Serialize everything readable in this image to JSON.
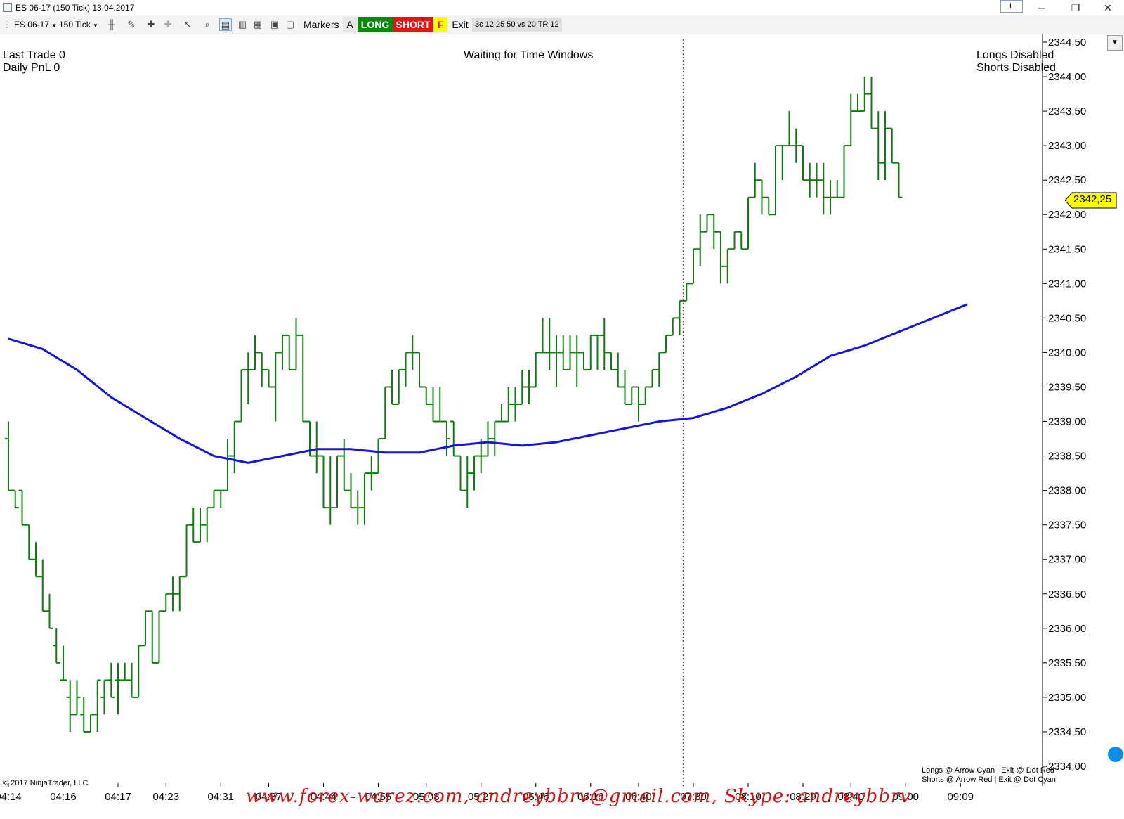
{
  "window": {
    "title": "ES 06-17 (150 Tick)  13.04.2017",
    "link_badge": "L",
    "minimize_glyph": "─",
    "restore_glyph": "❐",
    "close_glyph": "✕"
  },
  "toolbar": {
    "instrument": "ES 06-17",
    "interval": "150 Tick",
    "markers_label": "Markers",
    "a_label": "A",
    "long_label": "LONG",
    "short_label": "SHORT",
    "f_label": "F",
    "exit_label": "Exit",
    "strategy_label": "3c 12 25 50 vs 20 TR 12",
    "icons": [
      "bar-type-icon",
      "pencil-icon",
      "pin-icon",
      "gray-pin-icon",
      "pointer-icon",
      "zoom-icon",
      "data-box-icon",
      "chart-style-icon",
      "indicator-icon",
      "strategy-icon",
      "properties-icon"
    ]
  },
  "overlay": {
    "last_trade": "Last Trade 0",
    "daily_pnl": "Daily PnL  0",
    "status_center": "Waiting for Time Windows",
    "longs_status": "Longs Disabled",
    "shorts_status": "Shorts Disabled",
    "legend_longs": "Longs @ Arrow  Cyan | Exit @ Dot  Red",
    "legend_shorts": "Shorts @ Arrow  Red | Exit @ Dot  Cyan",
    "copyright": "© 2017 NinjaTrader, LLC",
    "watermark": "www.forex-warez.com, andreybbrv@gmail.com, Skype: andreybbrv"
  },
  "current_price": "2342,25",
  "colors": {
    "bars": "#0f7d0f",
    "ma": "#1414e6",
    "price_tag": "#ffff00",
    "long_btn": "#0a8a0a",
    "short_btn": "#e21414",
    "f_btn": "#ffff00",
    "watermark": "#d81010"
  },
  "chart_data": {
    "type": "ohlc",
    "ylim": [
      2334.0,
      2344.5
    ],
    "yticks": [
      {
        "value": 2344.5,
        "label": "2344,50"
      },
      {
        "value": 2344.0,
        "label": "2344,00"
      },
      {
        "value": 2343.5,
        "label": "2343,50"
      },
      {
        "value": 2343.0,
        "label": "2343,00"
      },
      {
        "value": 2342.5,
        "label": "2342,50"
      },
      {
        "value": 2342.0,
        "label": "2342,00"
      },
      {
        "value": 2341.5,
        "label": "2341,50"
      },
      {
        "value": 2341.0,
        "label": "2341,00"
      },
      {
        "value": 2340.5,
        "label": "2340,50"
      },
      {
        "value": 2340.0,
        "label": "2340,00"
      },
      {
        "value": 2339.5,
        "label": "2339,50"
      },
      {
        "value": 2339.0,
        "label": "2339,00"
      },
      {
        "value": 2338.5,
        "label": "2338,50"
      },
      {
        "value": 2338.0,
        "label": "2338,00"
      },
      {
        "value": 2337.5,
        "label": "2337,50"
      },
      {
        "value": 2337.0,
        "label": "2337,00"
      },
      {
        "value": 2336.5,
        "label": "2336,50"
      },
      {
        "value": 2336.0,
        "label": "2336,00"
      },
      {
        "value": 2335.5,
        "label": "2335,50"
      },
      {
        "value": 2335.0,
        "label": "2335,00"
      },
      {
        "value": 2334.5,
        "label": "2334,50"
      },
      {
        "value": 2334.0,
        "label": "2334,00"
      }
    ],
    "xticks": [
      {
        "bar": 0,
        "label": "04:14"
      },
      {
        "bar": 8,
        "label": "04:16"
      },
      {
        "bar": 16,
        "label": "04:17"
      },
      {
        "bar": 23,
        "label": "04:23"
      },
      {
        "bar": 31,
        "label": "04:31"
      },
      {
        "bar": 38,
        "label": "04:37"
      },
      {
        "bar": 46,
        "label": "04:44"
      },
      {
        "bar": 54,
        "label": "04:55"
      },
      {
        "bar": 61,
        "label": "05:08"
      },
      {
        "bar": 69,
        "label": "05:27"
      },
      {
        "bar": 77,
        "label": "05:46"
      },
      {
        "bar": 85,
        "label": "06:16"
      },
      {
        "bar": 92,
        "label": "06:40"
      },
      {
        "bar": 100,
        "label": "07:30"
      },
      {
        "bar": 108,
        "label": "08:10"
      },
      {
        "bar": 116,
        "label": "08:29"
      },
      {
        "bar": 123,
        "label": "08:40"
      },
      {
        "bar": 131,
        "label": "09:00"
      },
      {
        "bar": 139,
        "label": "09:09"
      }
    ],
    "session_break_bar": 98,
    "bars": [
      {
        "o": 2338.75,
        "h": 2339.0,
        "l": 2338.0,
        "c": 2338.0
      },
      {
        "o": 2338.0,
        "h": 2338.0,
        "l": 2337.75,
        "c": 2337.75
      },
      {
        "o": 2338.0,
        "h": 2338.0,
        "l": 2337.5,
        "c": 2337.5
      },
      {
        "o": 2337.5,
        "h": 2337.5,
        "l": 2337.0,
        "c": 2337.0
      },
      {
        "o": 2337.0,
        "h": 2337.25,
        "l": 2336.75,
        "c": 2336.75
      },
      {
        "o": 2336.75,
        "h": 2337.0,
        "l": 2336.25,
        "c": 2336.25
      },
      {
        "o": 2336.25,
        "h": 2336.5,
        "l": 2336.0,
        "c": 2336.0
      },
      {
        "o": 2335.75,
        "h": 2336.0,
        "l": 2335.5,
        "c": 2335.5
      },
      {
        "o": 2335.25,
        "h": 2335.75,
        "l": 2335.25,
        "c": 2335.25
      },
      {
        "o": 2335.0,
        "h": 2335.25,
        "l": 2334.5,
        "c": 2334.75
      },
      {
        "o": 2334.75,
        "h": 2335.25,
        "l": 2334.75,
        "c": 2335.0
      },
      {
        "o": 2334.75,
        "h": 2335.0,
        "l": 2334.5,
        "c": 2334.5
      },
      {
        "o": 2334.5,
        "h": 2334.75,
        "l": 2334.5,
        "c": 2334.75
      },
      {
        "o": 2334.75,
        "h": 2335.25,
        "l": 2334.5,
        "c": 2335.25
      },
      {
        "o": 2335.0,
        "h": 2335.25,
        "l": 2334.75,
        "c": 2335.25
      },
      {
        "o": 2335.25,
        "h": 2335.5,
        "l": 2335.0,
        "c": 2335.0
      },
      {
        "o": 2335.25,
        "h": 2335.5,
        "l": 2334.75,
        "c": 2335.25
      },
      {
        "o": 2335.25,
        "h": 2335.5,
        "l": 2335.25,
        "c": 2335.25
      },
      {
        "o": 2335.25,
        "h": 2335.5,
        "l": 2335.0,
        "c": 2335.0
      },
      {
        "o": 2335.0,
        "h": 2335.75,
        "l": 2335.0,
        "c": 2335.75
      },
      {
        "o": 2335.75,
        "h": 2336.25,
        "l": 2335.75,
        "c": 2336.25
      },
      {
        "o": 2336.25,
        "h": 2336.25,
        "l": 2335.5,
        "c": 2335.5
      },
      {
        "o": 2335.5,
        "h": 2336.25,
        "l": 2335.5,
        "c": 2336.25
      },
      {
        "o": 2336.25,
        "h": 2336.5,
        "l": 2336.25,
        "c": 2336.5
      },
      {
        "o": 2336.5,
        "h": 2336.75,
        "l": 2336.25,
        "c": 2336.5
      },
      {
        "o": 2336.5,
        "h": 2336.75,
        "l": 2336.25,
        "c": 2336.75
      },
      {
        "o": 2336.75,
        "h": 2337.5,
        "l": 2336.75,
        "c": 2337.5
      },
      {
        "o": 2337.5,
        "h": 2337.75,
        "l": 2337.25,
        "c": 2337.25
      },
      {
        "o": 2337.25,
        "h": 2337.75,
        "l": 2337.25,
        "c": 2337.5
      },
      {
        "o": 2337.5,
        "h": 2337.75,
        "l": 2337.25,
        "c": 2337.75
      },
      {
        "o": 2337.75,
        "h": 2338.0,
        "l": 2337.75,
        "c": 2338.0
      },
      {
        "o": 2338.0,
        "h": 2338.0,
        "l": 2337.75,
        "c": 2338.0
      },
      {
        "o": 2338.0,
        "h": 2338.75,
        "l": 2338.0,
        "c": 2338.5
      },
      {
        "o": 2338.5,
        "h": 2339.0,
        "l": 2338.25,
        "c": 2339.0
      },
      {
        "o": 2339.0,
        "h": 2339.75,
        "l": 2339.0,
        "c": 2339.75
      },
      {
        "o": 2339.75,
        "h": 2340.0,
        "l": 2339.25,
        "c": 2339.75
      },
      {
        "o": 2339.75,
        "h": 2340.25,
        "l": 2339.75,
        "c": 2340.0
      },
      {
        "o": 2340.0,
        "h": 2340.0,
        "l": 2339.5,
        "c": 2339.75
      },
      {
        "o": 2339.75,
        "h": 2339.75,
        "l": 2339.5,
        "c": 2339.5
      },
      {
        "o": 2339.5,
        "h": 2340.0,
        "l": 2339.0,
        "c": 2340.0
      },
      {
        "o": 2340.0,
        "h": 2340.25,
        "l": 2339.75,
        "c": 2340.25
      },
      {
        "o": 2340.25,
        "h": 2340.25,
        "l": 2339.75,
        "c": 2339.75
      },
      {
        "o": 2339.75,
        "h": 2340.5,
        "l": 2339.75,
        "c": 2340.25
      },
      {
        "o": 2340.25,
        "h": 2340.25,
        "l": 2339.0,
        "c": 2339.0
      },
      {
        "o": 2339.0,
        "h": 2339.0,
        "l": 2338.5,
        "c": 2338.5
      },
      {
        "o": 2338.5,
        "h": 2339.0,
        "l": 2338.25,
        "c": 2338.5
      },
      {
        "o": 2338.5,
        "h": 2338.5,
        "l": 2337.75,
        "c": 2337.75
      },
      {
        "o": 2337.75,
        "h": 2338.5,
        "l": 2337.5,
        "c": 2337.75
      },
      {
        "o": 2337.75,
        "h": 2338.5,
        "l": 2337.75,
        "c": 2338.5
      },
      {
        "o": 2338.5,
        "h": 2338.75,
        "l": 2338.0,
        "c": 2338.0
      },
      {
        "o": 2338.0,
        "h": 2338.25,
        "l": 2337.75,
        "c": 2337.75
      },
      {
        "o": 2337.75,
        "h": 2338.0,
        "l": 2337.5,
        "c": 2337.75
      },
      {
        "o": 2337.75,
        "h": 2338.25,
        "l": 2337.5,
        "c": 2338.25
      },
      {
        "o": 2338.25,
        "h": 2338.5,
        "l": 2338.0,
        "c": 2338.25
      },
      {
        "o": 2338.25,
        "h": 2338.75,
        "l": 2338.25,
        "c": 2338.75
      },
      {
        "o": 2338.75,
        "h": 2339.5,
        "l": 2338.75,
        "c": 2339.5
      },
      {
        "o": 2339.5,
        "h": 2339.75,
        "l": 2339.25,
        "c": 2339.25
      },
      {
        "o": 2339.25,
        "h": 2339.75,
        "l": 2339.25,
        "c": 2339.75
      },
      {
        "o": 2339.75,
        "h": 2340.0,
        "l": 2339.5,
        "c": 2340.0
      },
      {
        "o": 2340.0,
        "h": 2340.25,
        "l": 2339.75,
        "c": 2340.0
      },
      {
        "o": 2340.0,
        "h": 2340.0,
        "l": 2339.5,
        "c": 2339.5
      },
      {
        "o": 2339.5,
        "h": 2339.5,
        "l": 2339.25,
        "c": 2339.25
      },
      {
        "o": 2339.25,
        "h": 2339.5,
        "l": 2339.0,
        "c": 2339.0
      },
      {
        "o": 2339.0,
        "h": 2339.5,
        "l": 2339.0,
        "c": 2339.0
      },
      {
        "o": 2339.0,
        "h": 2339.0,
        "l": 2338.5,
        "c": 2338.75
      },
      {
        "o": 2339.0,
        "h": 2339.0,
        "l": 2338.5,
        "c": 2338.5
      },
      {
        "o": 2338.5,
        "h": 2338.5,
        "l": 2338.0,
        "c": 2338.0
      },
      {
        "o": 2338.0,
        "h": 2338.5,
        "l": 2337.75,
        "c": 2338.25
      },
      {
        "o": 2338.25,
        "h": 2338.5,
        "l": 2338.0,
        "c": 2338.5
      },
      {
        "o": 2338.5,
        "h": 2338.75,
        "l": 2338.25,
        "c": 2338.5
      },
      {
        "o": 2338.5,
        "h": 2339.0,
        "l": 2338.5,
        "c": 2338.75
      },
      {
        "o": 2338.75,
        "h": 2339.0,
        "l": 2338.5,
        "c": 2339.0
      },
      {
        "o": 2339.0,
        "h": 2339.25,
        "l": 2339.0,
        "c": 2339.0
      },
      {
        "o": 2339.0,
        "h": 2339.5,
        "l": 2339.0,
        "c": 2339.25
      },
      {
        "o": 2339.25,
        "h": 2339.5,
        "l": 2339.0,
        "c": 2339.25
      },
      {
        "o": 2339.25,
        "h": 2339.75,
        "l": 2339.25,
        "c": 2339.5
      },
      {
        "o": 2339.5,
        "h": 2339.75,
        "l": 2339.25,
        "c": 2339.5
      },
      {
        "o": 2339.5,
        "h": 2340.0,
        "l": 2339.5,
        "c": 2340.0
      },
      {
        "o": 2340.0,
        "h": 2340.5,
        "l": 2340.0,
        "c": 2340.0
      },
      {
        "o": 2340.0,
        "h": 2340.5,
        "l": 2339.75,
        "c": 2340.0
      },
      {
        "o": 2340.0,
        "h": 2340.25,
        "l": 2339.5,
        "c": 2340.0
      },
      {
        "o": 2340.0,
        "h": 2340.25,
        "l": 2339.75,
        "c": 2339.75
      },
      {
        "o": 2339.75,
        "h": 2340.25,
        "l": 2339.75,
        "c": 2340.0
      },
      {
        "o": 2340.0,
        "h": 2340.25,
        "l": 2339.5,
        "c": 2340.0
      },
      {
        "o": 2340.0,
        "h": 2340.0,
        "l": 2339.75,
        "c": 2339.75
      },
      {
        "o": 2339.75,
        "h": 2340.25,
        "l": 2339.75,
        "c": 2340.25
      },
      {
        "o": 2340.25,
        "h": 2340.25,
        "l": 2339.75,
        "c": 2340.25
      },
      {
        "o": 2340.25,
        "h": 2340.5,
        "l": 2339.75,
        "c": 2340.0
      },
      {
        "o": 2340.0,
        "h": 2340.0,
        "l": 2339.75,
        "c": 2339.75
      },
      {
        "o": 2339.75,
        "h": 2340.0,
        "l": 2339.5,
        "c": 2339.5
      },
      {
        "o": 2339.5,
        "h": 2339.75,
        "l": 2339.25,
        "c": 2339.25
      },
      {
        "o": 2339.25,
        "h": 2339.5,
        "l": 2339.25,
        "c": 2339.5
      },
      {
        "o": 2339.5,
        "h": 2339.5,
        "l": 2339.0,
        "c": 2339.25
      },
      {
        "o": 2339.25,
        "h": 2339.5,
        "l": 2339.25,
        "c": 2339.5
      },
      {
        "o": 2339.5,
        "h": 2339.75,
        "l": 2339.5,
        "c": 2339.75
      },
      {
        "o": 2339.75,
        "h": 2340.0,
        "l": 2339.5,
        "c": 2340.0
      },
      {
        "o": 2340.0,
        "h": 2340.25,
        "l": 2340.0,
        "c": 2340.25
      },
      {
        "o": 2340.25,
        "h": 2340.5,
        "l": 2340.25,
        "c": 2340.5
      },
      {
        "o": 2340.5,
        "h": 2340.75,
        "l": 2340.25,
        "c": 2340.75
      },
      {
        "o": 2340.75,
        "h": 2341.0,
        "l": 2340.75,
        "c": 2341.0
      },
      {
        "o": 2341.0,
        "h": 2341.5,
        "l": 2341.0,
        "c": 2341.5
      },
      {
        "o": 2341.5,
        "h": 2342.0,
        "l": 2341.25,
        "c": 2341.75
      },
      {
        "o": 2341.75,
        "h": 2342.0,
        "l": 2341.75,
        "c": 2342.0
      },
      {
        "o": 2342.0,
        "h": 2342.0,
        "l": 2341.5,
        "c": 2341.75
      },
      {
        "o": 2341.75,
        "h": 2341.75,
        "l": 2341.0,
        "c": 2341.25
      },
      {
        "o": 2341.25,
        "h": 2341.5,
        "l": 2341.0,
        "c": 2341.5
      },
      {
        "o": 2341.5,
        "h": 2341.75,
        "l": 2341.5,
        "c": 2341.75
      },
      {
        "o": 2341.75,
        "h": 2341.75,
        "l": 2341.5,
        "c": 2341.5
      },
      {
        "o": 2341.5,
        "h": 2342.25,
        "l": 2341.5,
        "c": 2342.25
      },
      {
        "o": 2342.25,
        "h": 2342.75,
        "l": 2342.25,
        "c": 2342.5
      },
      {
        "o": 2342.5,
        "h": 2342.5,
        "l": 2342.0,
        "c": 2342.25
      },
      {
        "o": 2342.25,
        "h": 2342.25,
        "l": 2342.0,
        "c": 2342.0
      },
      {
        "o": 2342.0,
        "h": 2343.0,
        "l": 2342.0,
        "c": 2343.0
      },
      {
        "o": 2343.0,
        "h": 2343.0,
        "l": 2342.5,
        "c": 2343.0
      },
      {
        "o": 2343.0,
        "h": 2343.5,
        "l": 2343.0,
        "c": 2343.0
      },
      {
        "o": 2343.0,
        "h": 2343.25,
        "l": 2342.75,
        "c": 2343.0
      },
      {
        "o": 2343.0,
        "h": 2343.0,
        "l": 2342.5,
        "c": 2342.5
      },
      {
        "o": 2342.5,
        "h": 2342.75,
        "l": 2342.25,
        "c": 2342.5
      },
      {
        "o": 2342.5,
        "h": 2342.75,
        "l": 2342.25,
        "c": 2342.5
      },
      {
        "o": 2342.5,
        "h": 2342.75,
        "l": 2342.0,
        "c": 2342.25
      },
      {
        "o": 2342.25,
        "h": 2342.5,
        "l": 2342.0,
        "c": 2342.25
      },
      {
        "o": 2342.25,
        "h": 2342.5,
        "l": 2342.25,
        "c": 2342.25
      },
      {
        "o": 2342.25,
        "h": 2343.0,
        "l": 2342.25,
        "c": 2343.0
      },
      {
        "o": 2343.0,
        "h": 2343.75,
        "l": 2343.0,
        "c": 2343.5
      },
      {
        "o": 2343.5,
        "h": 2343.75,
        "l": 2343.5,
        "c": 2343.5
      },
      {
        "o": 2343.5,
        "h": 2344.0,
        "l": 2343.5,
        "c": 2343.75
      },
      {
        "o": 2343.75,
        "h": 2344.0,
        "l": 2343.25,
        "c": 2343.25
      },
      {
        "o": 2343.25,
        "h": 2343.5,
        "l": 2342.5,
        "c": 2342.75
      },
      {
        "o": 2342.75,
        "h": 2343.5,
        "l": 2342.5,
        "c": 2343.25
      },
      {
        "o": 2343.25,
        "h": 2343.25,
        "l": 2342.75,
        "c": 2342.75
      },
      {
        "o": 2342.75,
        "h": 2342.75,
        "l": 2342.25,
        "c": 2342.25
      }
    ],
    "ma_series": [
      {
        "bar": 0,
        "v": 2340.2
      },
      {
        "bar": 5,
        "v": 2340.05
      },
      {
        "bar": 10,
        "v": 2339.75
      },
      {
        "bar": 15,
        "v": 2339.35
      },
      {
        "bar": 20,
        "v": 2339.05
      },
      {
        "bar": 25,
        "v": 2338.75
      },
      {
        "bar": 30,
        "v": 2338.5
      },
      {
        "bar": 35,
        "v": 2338.4
      },
      {
        "bar": 40,
        "v": 2338.5
      },
      {
        "bar": 45,
        "v": 2338.6
      },
      {
        "bar": 50,
        "v": 2338.6
      },
      {
        "bar": 55,
        "v": 2338.55
      },
      {
        "bar": 60,
        "v": 2338.55
      },
      {
        "bar": 65,
        "v": 2338.65
      },
      {
        "bar": 70,
        "v": 2338.7
      },
      {
        "bar": 75,
        "v": 2338.65
      },
      {
        "bar": 80,
        "v": 2338.7
      },
      {
        "bar": 85,
        "v": 2338.8
      },
      {
        "bar": 90,
        "v": 2338.9
      },
      {
        "bar": 95,
        "v": 2339.0
      },
      {
        "bar": 100,
        "v": 2339.05
      },
      {
        "bar": 105,
        "v": 2339.2
      },
      {
        "bar": 110,
        "v": 2339.4
      },
      {
        "bar": 115,
        "v": 2339.65
      },
      {
        "bar": 120,
        "v": 2339.95
      },
      {
        "bar": 125,
        "v": 2340.1
      },
      {
        "bar": 130,
        "v": 2340.3
      },
      {
        "bar": 135,
        "v": 2340.5
      },
      {
        "bar": 140,
        "v": 2340.7
      }
    ]
  }
}
